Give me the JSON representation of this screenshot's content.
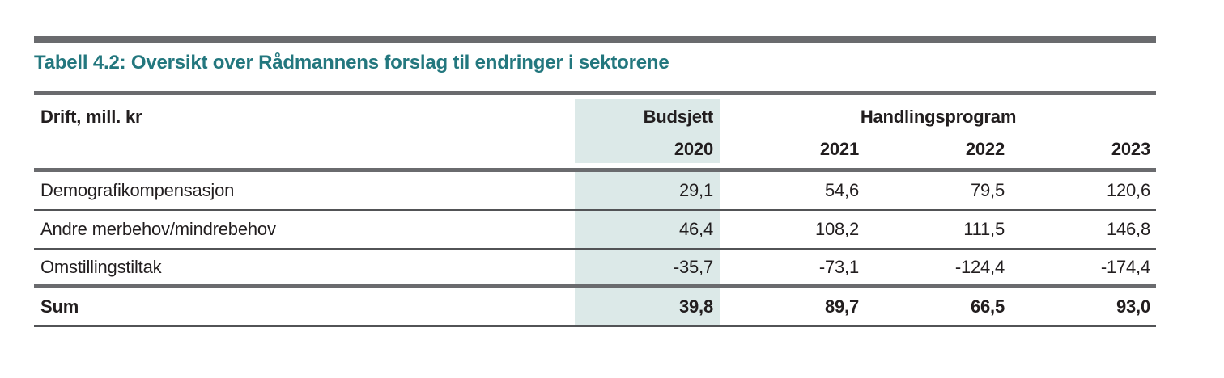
{
  "title": "Tabell 4.2: Oversikt over Rådmannens forslag til endringer i sektorene",
  "table": {
    "corner_label": "Drift, mill. kr",
    "budget_group_label": "Budsjett",
    "program_group_label": "Handlingsprogram",
    "year_headers": [
      "2020",
      "2021",
      "2022",
      "2023"
    ],
    "rows": [
      {
        "label": "Demografikompensasjon",
        "values": [
          "29,1",
          "54,6",
          "79,5",
          "120,6"
        ]
      },
      {
        "label": "Andre merbehov/mindrebehov",
        "values": [
          "46,4",
          "108,2",
          "111,5",
          "146,8"
        ]
      },
      {
        "label": "Omstillingstiltak",
        "values": [
          "-35,7",
          "-73,1",
          "-124,4",
          "-174,4"
        ]
      }
    ],
    "sum_row": {
      "label": "Sum",
      "values": [
        "39,8",
        "89,7",
        "66,5",
        "93,0"
      ]
    }
  },
  "colors": {
    "accent_teal": "#23777e",
    "highlight_column": "#dce9e8",
    "rule_gray_thick": "#6a6b6e",
    "rule_gray_thin": "#525356",
    "text": "#221e1f",
    "background": "#ffffff"
  }
}
